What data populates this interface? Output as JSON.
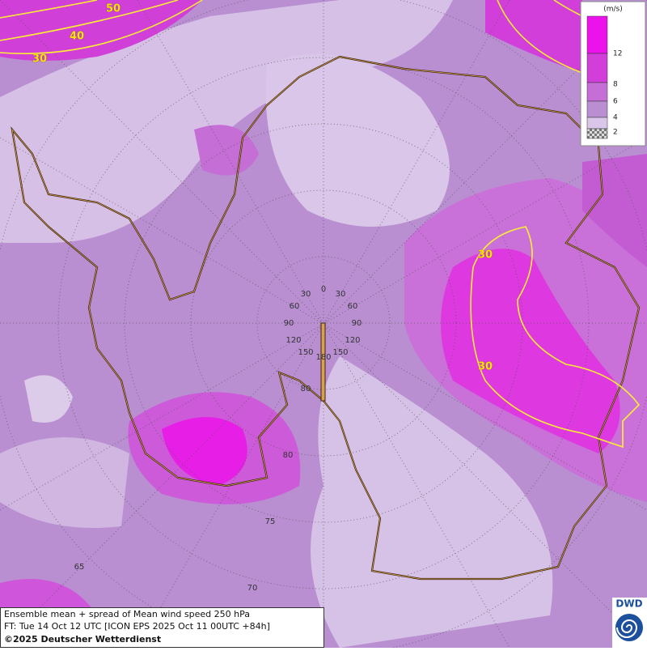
{
  "contour_labels": [
    "50",
    "40",
    "30",
    "30",
    "30"
  ],
  "longitude_labels": [
    "0",
    "30",
    "30",
    "60",
    "60",
    "90",
    "90",
    "120",
    "120",
    "150",
    "150",
    "180"
  ],
  "latitude_labels": [
    "80",
    "80",
    "75",
    "70",
    "65"
  ],
  "legend": {
    "unit": "(m/s)",
    "levels": [
      12,
      8,
      6,
      4,
      2
    ]
  },
  "footer": {
    "line1": "Ensemble mean + spread of Mean wind speed 250 hPa",
    "line2": "FT: Tue 14 Oct 12 UTC [ICON EPS 2025 Oct 11 00UTC +84h]",
    "line3": "©2025 Deutscher Wetterdienst"
  },
  "logo": "DWD"
}
